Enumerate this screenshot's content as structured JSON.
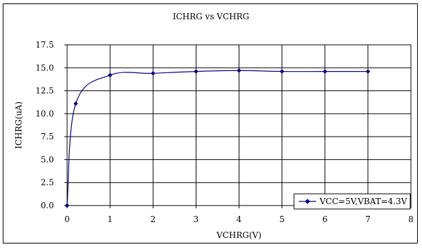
{
  "chart_data": {
    "type": "line",
    "title": "ICHRG vs VCHRG",
    "xlabel": "VCHRG(V)",
    "ylabel": "ICHRG(uA)",
    "xlim": [
      0,
      8
    ],
    "ylim": [
      0,
      17.5
    ],
    "x_ticks": [
      0,
      1,
      2,
      3,
      4,
      5,
      6,
      7,
      8
    ],
    "y_ticks": [
      0,
      2.5,
      5,
      7.5,
      10,
      12.5,
      15,
      17.5
    ],
    "x_tick_labels": [
      "0",
      "1",
      "2",
      "3",
      "4",
      "5",
      "6",
      "7",
      "8"
    ],
    "y_tick_labels": [
      "0.0",
      "2.5",
      "5.0",
      "7.5",
      "10.0",
      "12.5",
      "15.0",
      "17.5"
    ],
    "grid": true,
    "legend_position": "bottom-right",
    "series": [
      {
        "name": "VCC=5V,VBAT=4.3V",
        "color": "#000080",
        "marker": "diamond",
        "smooth": true,
        "x": [
          0,
          0.2,
          1,
          2,
          3,
          4,
          5,
          6,
          7
        ],
        "y": [
          0,
          11.1,
          14.2,
          14.4,
          14.6,
          14.7,
          14.6,
          14.6,
          14.6
        ]
      }
    ]
  }
}
